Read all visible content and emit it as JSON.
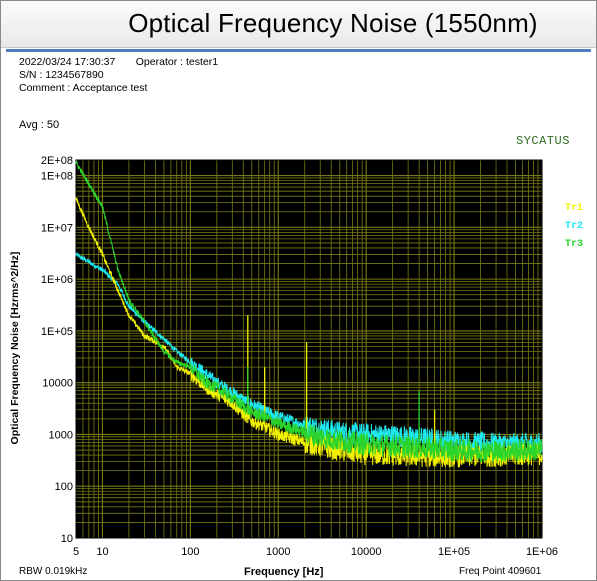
{
  "window": {
    "title": "Optical Frequency Noise (1550nm)"
  },
  "header": {
    "datetime": "2022/03/24 17:30:37",
    "operator": "Operator : tester1",
    "serial": "S/N : 1234567890",
    "comment": "Comment : Acceptance test",
    "avg": "Avg : 50"
  },
  "brand": "SYCATUS",
  "footer": {
    "rbw": "RBW 0.019kHz",
    "freq_point": "Freq Point 409601"
  },
  "colors": {
    "tr1": "#f2f200",
    "tr2": "#1ee8f0",
    "tr3": "#2bd42b",
    "plot_bg": "#000000",
    "grid": "#7a7a12"
  },
  "chart_data": {
    "type": "line",
    "title": "Optical Frequency Noise (1550nm)",
    "xlabel": "Frequency [Hz]",
    "ylabel": "Optical Frequency Noise [Hzrms^2/Hz]",
    "xscale": "log",
    "yscale": "log",
    "xlim": [
      5,
      1000000
    ],
    "ylim": [
      10,
      200000000
    ],
    "x_tick_labels": [
      "5",
      "10",
      "100",
      "1000",
      "10000",
      "1E+05",
      "1E+06"
    ],
    "y_tick_labels": [
      "2E+08",
      "1E+08",
      "1E+07",
      "1E+06",
      "1E+05",
      "10000",
      "1000",
      "100",
      "10"
    ],
    "grid": true,
    "legend_position": "right",
    "series": [
      {
        "name": "Tr1",
        "x": [
          5,
          7,
          10,
          15,
          20,
          30,
          50,
          70,
          100,
          150,
          200,
          300,
          400,
          450,
          500,
          700,
          1000,
          2000,
          3000,
          5000,
          10000,
          20000,
          50000,
          100000,
          300000,
          1000000
        ],
        "y": [
          36000000,
          10000000,
          3000000,
          600000,
          200000,
          80000,
          50000,
          20000,
          15000,
          8000,
          6000,
          4000,
          2500,
          2000,
          1800,
          1400,
          1000,
          700,
          600,
          500,
          420,
          400,
          380,
          380,
          390,
          420
        ],
        "spikes": [
          {
            "x": 450,
            "y": 200000
          },
          {
            "x": 700,
            "y": 20000
          },
          {
            "x": 2100,
            "y": 60000
          },
          {
            "x": 60000,
            "y": 3000
          }
        ]
      },
      {
        "name": "Tr2",
        "x": [
          5,
          10,
          15,
          20,
          30,
          50,
          70,
          100,
          150,
          200,
          300,
          400,
          500,
          700,
          1000,
          2000,
          3000,
          5000,
          10000,
          20000,
          50000,
          100000,
          300000,
          1000000
        ],
        "y": [
          3000000,
          1500000,
          800000,
          300000,
          150000,
          70000,
          40000,
          25000,
          15000,
          10000,
          6500,
          4700,
          3800,
          2800,
          2200,
          1500,
          1300,
          1100,
          1000,
          950,
          820,
          730,
          650,
          650
        ],
        "spikes": []
      },
      {
        "name": "Tr3",
        "x": [
          5,
          10,
          15,
          20,
          30,
          50,
          70,
          100,
          150,
          200,
          300,
          400,
          500,
          700,
          1000,
          2000,
          3000,
          5000,
          10000,
          20000,
          50000,
          100000,
          300000,
          1000000
        ],
        "y": [
          180000000,
          25000000,
          1500000,
          400000,
          150000,
          40000,
          25000,
          20000,
          10000,
          8000,
          5000,
          3500,
          2700,
          2200,
          1600,
          1100,
          900,
          750,
          650,
          600,
          550,
          500,
          480,
          500
        ],
        "spikes": [
          {
            "x": 450,
            "y": 20000
          },
          {
            "x": 40000,
            "y": 7000
          }
        ]
      }
    ]
  }
}
